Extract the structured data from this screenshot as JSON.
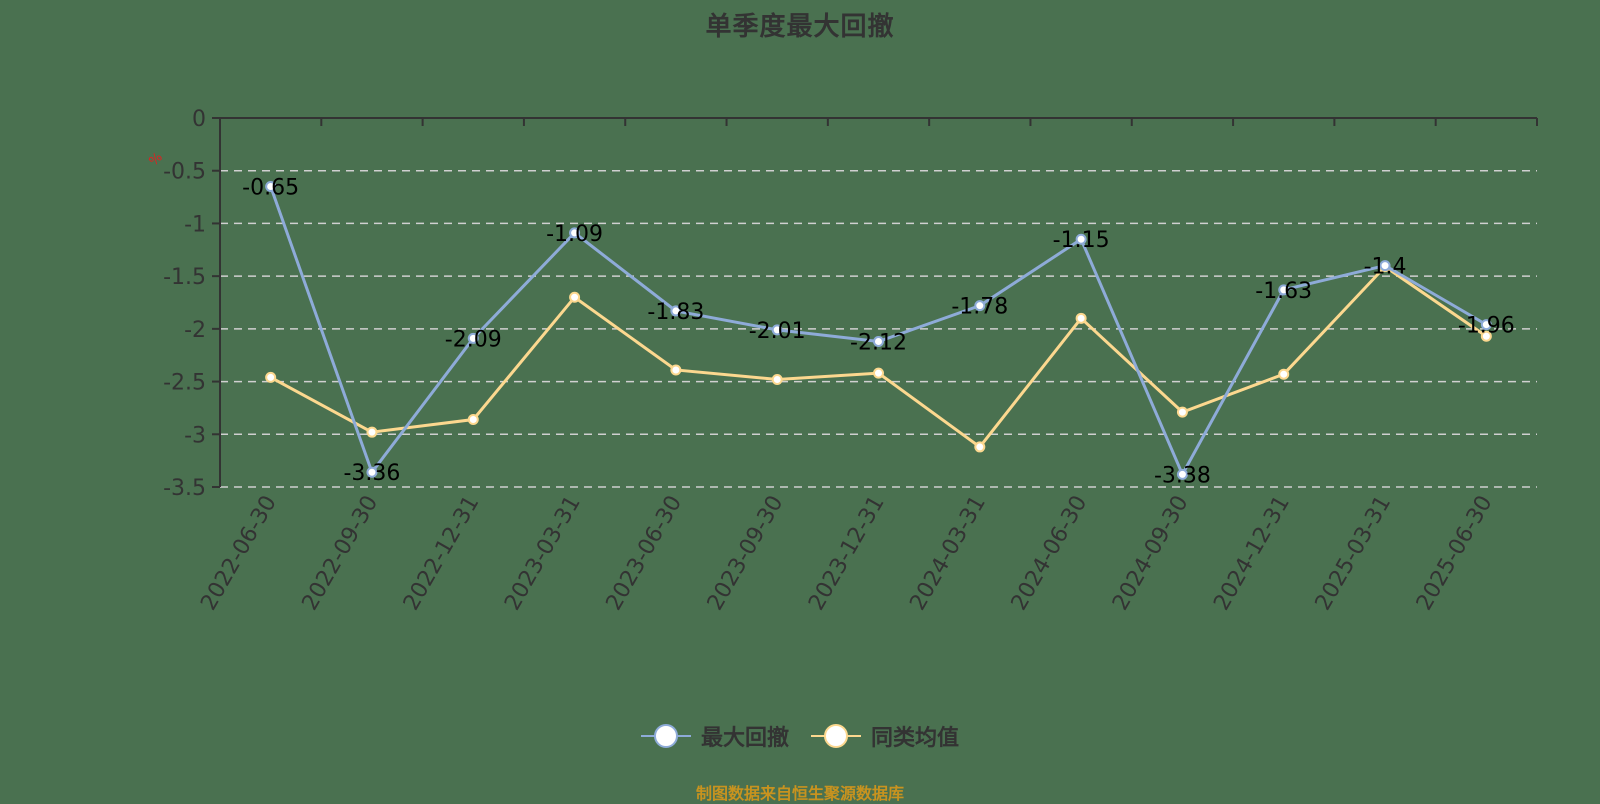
{
  "title": "单季度最大回撤",
  "unit_label": "%",
  "legend": [
    {
      "label": "最大回撤",
      "color": "#8eabd8"
    },
    {
      "label": "同类均值",
      "color": "#fcd88f"
    }
  ],
  "footer": "制图数据来自恒生聚源数据库",
  "colors": {
    "background": "#4a7150",
    "axis": "#333333",
    "grid": "#d0d0d0",
    "series1": "#8eabd8",
    "series2": "#fcd88f",
    "data_label": "#000000"
  },
  "chart_data": {
    "type": "line",
    "title": "单季度最大回撤",
    "xlabel": "",
    "ylabel": "%",
    "ylim": [
      -3.5,
      0
    ],
    "yticks": [
      0,
      -0.5,
      -1,
      -1.5,
      -2,
      -2.5,
      -3,
      -3.5
    ],
    "grid": true,
    "legend_position": "bottom",
    "categories": [
      "2022-06-30",
      "2022-09-30",
      "2022-12-31",
      "2023-03-31",
      "2023-06-30",
      "2023-09-30",
      "2023-12-31",
      "2024-03-31",
      "2024-06-30",
      "2024-09-30",
      "2024-12-31",
      "2025-03-31",
      "2025-06-30"
    ],
    "series": [
      {
        "name": "最大回撤",
        "values": [
          -0.65,
          -3.36,
          -2.09,
          -1.09,
          -1.83,
          -2.01,
          -2.12,
          -1.78,
          -1.15,
          -3.38,
          -1.63,
          -1.4,
          -1.96
        ],
        "show_labels": true
      },
      {
        "name": "同类均值",
        "values": [
          -2.46,
          -2.98,
          -2.86,
          -1.7,
          -2.39,
          -2.48,
          -2.42,
          -3.12,
          -1.9,
          -2.79,
          -2.43,
          -1.41,
          -2.07
        ],
        "show_labels": false
      }
    ]
  }
}
